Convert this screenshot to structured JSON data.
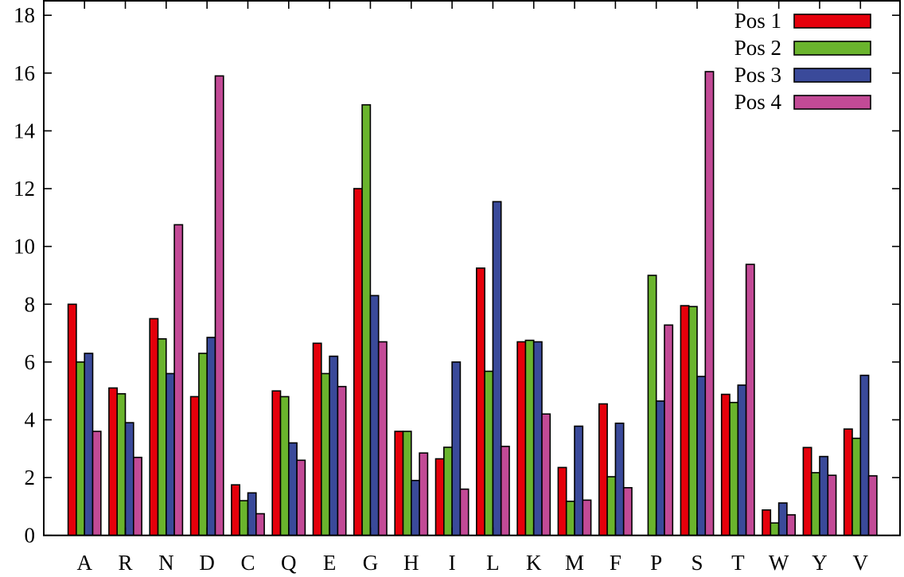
{
  "chart_data": {
    "type": "bar",
    "title": "",
    "xlabel": "",
    "ylabel": "",
    "ylim": [
      0,
      18
    ],
    "yticks": [
      0,
      2,
      4,
      6,
      8,
      10,
      12,
      14,
      16,
      18
    ],
    "grid": false,
    "legend_position": "top-right",
    "categories": [
      "A",
      "R",
      "N",
      "D",
      "C",
      "Q",
      "E",
      "G",
      "H",
      "I",
      "L",
      "K",
      "M",
      "F",
      "P",
      "S",
      "T",
      "W",
      "Y",
      "V"
    ],
    "series": [
      {
        "name": "Pos 1",
        "color": "#e5000b",
        "values": [
          8.0,
          5.1,
          7.5,
          4.8,
          1.75,
          5.0,
          6.65,
          12.0,
          3.6,
          2.65,
          9.25,
          6.7,
          2.35,
          4.55,
          0.0,
          7.95,
          4.88,
          0.88,
          3.04,
          3.68
        ]
      },
      {
        "name": "Pos 2",
        "color": "#6ab42d",
        "values": [
          6.0,
          4.9,
          6.8,
          6.3,
          1.2,
          4.8,
          5.6,
          14.9,
          3.6,
          3.05,
          5.68,
          6.75,
          1.18,
          2.03,
          9.0,
          7.92,
          4.6,
          0.43,
          2.17,
          3.36
        ]
      },
      {
        "name": "Pos 3",
        "color": "#3a4a9a",
        "values": [
          6.3,
          3.9,
          5.6,
          6.85,
          1.47,
          3.2,
          6.2,
          8.3,
          1.9,
          6.0,
          11.55,
          6.7,
          3.78,
          3.88,
          4.65,
          5.5,
          5.2,
          1.12,
          2.73,
          5.54
        ]
      },
      {
        "name": "Pos 4",
        "color": "#c24a96",
        "values": [
          3.6,
          2.7,
          10.75,
          15.9,
          0.75,
          2.6,
          5.15,
          6.7,
          2.85,
          1.6,
          3.08,
          4.2,
          1.22,
          1.65,
          7.28,
          16.05,
          9.38,
          0.71,
          2.08,
          2.06
        ]
      }
    ]
  }
}
